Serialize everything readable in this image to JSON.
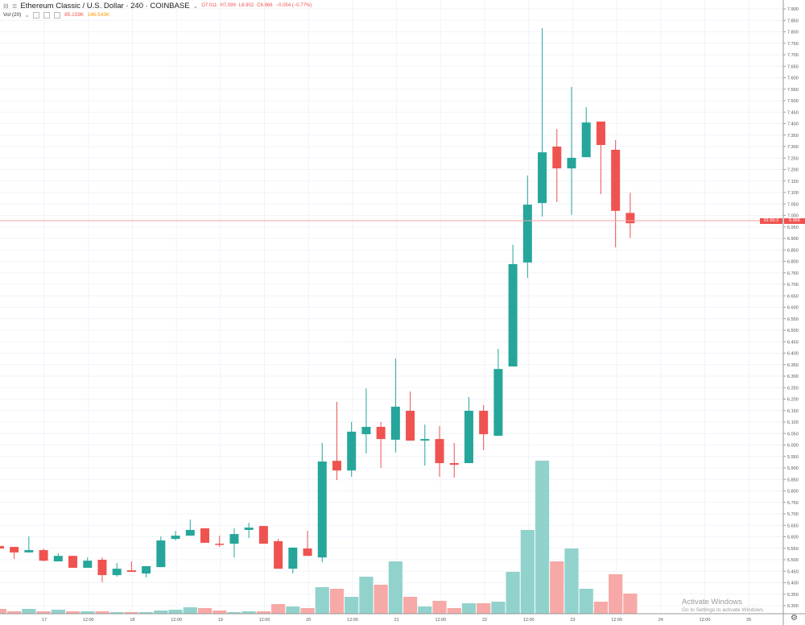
{
  "header": {
    "symbol": "Ethereum Classic / U.S. Dollar · 240 · COINBASE",
    "open": "O7.011",
    "high": "H7.099",
    "low": "L6.902",
    "close": "C6.966",
    "change": "−0.054 (−0.77%)",
    "volume_label": "Vol (20)",
    "volume_value": "85.159K",
    "volume_ma": "146.543K"
  },
  "price_label": {
    "price": "6.966",
    "countdown": "01:56:3"
  },
  "watermark": {
    "title": "Activate Windows",
    "subtitle": "Go to Settings to activate Windows."
  },
  "colors": {
    "up": "#26a69a",
    "down": "#ef5350",
    "up_volume": "#92d2cc",
    "down_volume": "#f7a9a7",
    "grid": "#f0f3fa",
    "price_line": "#f4a3a3"
  },
  "chart_data": {
    "type": "candlestick",
    "title": "",
    "ylim": [
      5.3,
      7.9
    ],
    "grid": true,
    "y_ticks": [
      "7.900",
      "7.850",
      "7.800",
      "7.750",
      "7.700",
      "7.650",
      "7.600",
      "7.550",
      "7.500",
      "7.450",
      "7.400",
      "7.350",
      "7.300",
      "7.250",
      "7.200",
      "7.150",
      "7.100",
      "7.050",
      "7.000",
      "6.950",
      "6.900",
      "6.850",
      "6.800",
      "6.750",
      "6.700",
      "6.650",
      "6.600",
      "6.550",
      "6.500",
      "6.450",
      "6.400",
      "6.350",
      "6.300",
      "6.250",
      "6.200",
      "6.150",
      "6.100",
      "6.050",
      "6.000",
      "5.950",
      "5.900",
      "5.850",
      "5.800",
      "5.750",
      "5.700",
      "5.650",
      "5.600",
      "5.550",
      "5.500",
      "5.450",
      "5.400",
      "5.350",
      "5.300"
    ],
    "x_ticks": [
      "17",
      "12:00",
      "18",
      "12:00",
      "19",
      "12:00",
      "20",
      "12:00",
      "21",
      "12:00",
      "22",
      "12:00",
      "23",
      "12:00",
      "24",
      "12:00",
      "25"
    ],
    "candles": [
      {
        "t": "16 12:00",
        "o": 5.56,
        "h": 5.56,
        "l": 5.549,
        "c": 5.549,
        "v": 20.4
      },
      {
        "t": "16 16:00",
        "o": 5.556,
        "h": 5.556,
        "l": 5.503,
        "c": 5.532,
        "v": 10.2
      },
      {
        "t": "16 20:00",
        "o": 5.532,
        "h": 5.602,
        "l": 5.532,
        "c": 5.542,
        "v": 20.4
      },
      {
        "t": "17 00:00",
        "o": 5.542,
        "h": 5.549,
        "l": 5.493,
        "c": 5.496,
        "v": 10.2
      },
      {
        "t": "17 04:00",
        "o": 5.493,
        "h": 5.528,
        "l": 5.493,
        "c": 5.517,
        "v": 17.0
      },
      {
        "t": "17 08:00",
        "o": 5.517,
        "h": 5.517,
        "l": 5.465,
        "c": 5.465,
        "v": 10.2
      },
      {
        "t": "17 12:00",
        "o": 5.465,
        "h": 5.51,
        "l": 5.465,
        "c": 5.496,
        "v": 10.2
      },
      {
        "t": "17 16:00",
        "o": 5.5,
        "h": 5.51,
        "l": 5.402,
        "c": 5.433,
        "v": 10.2
      },
      {
        "t": "17 20:00",
        "o": 5.433,
        "h": 5.486,
        "l": 5.426,
        "c": 5.461,
        "v": 6.8
      },
      {
        "t": "18 00:00",
        "o": 5.454,
        "h": 5.493,
        "l": 5.447,
        "c": 5.447,
        "v": 6.8
      },
      {
        "t": "18 04:00",
        "o": 5.44,
        "h": 5.472,
        "l": 5.423,
        "c": 5.472,
        "v": 6.8
      },
      {
        "t": "18 08:00",
        "o": 5.468,
        "h": 5.602,
        "l": 5.468,
        "c": 5.584,
        "v": 13.6
      },
      {
        "t": "18 12:00",
        "o": 5.591,
        "h": 5.626,
        "l": 5.584,
        "c": 5.605,
        "v": 17.0
      },
      {
        "t": "18 16:00",
        "o": 5.605,
        "h": 5.675,
        "l": 5.605,
        "c": 5.63,
        "v": 27.2
      },
      {
        "t": "18 20:00",
        "o": 5.637,
        "h": 5.637,
        "l": 5.574,
        "c": 5.574,
        "v": 23.8
      },
      {
        "t": "19 00:00",
        "o": 5.57,
        "h": 5.605,
        "l": 5.556,
        "c": 5.567,
        "v": 13.6
      },
      {
        "t": "19 04:00",
        "o": 5.57,
        "h": 5.637,
        "l": 5.51,
        "c": 5.612,
        "v": 6.8
      },
      {
        "t": "19 08:00",
        "o": 5.63,
        "h": 5.661,
        "l": 5.595,
        "c": 5.64,
        "v": 10.2
      },
      {
        "t": "19 12:00",
        "o": 5.647,
        "h": 5.647,
        "l": 5.57,
        "c": 5.57,
        "v": 10.2
      },
      {
        "t": "19 16:00",
        "o": 5.581,
        "h": 5.591,
        "l": 5.461,
        "c": 5.461,
        "v": 40.8
      },
      {
        "t": "19 20:00",
        "o": 5.461,
        "h": 5.553,
        "l": 5.44,
        "c": 5.553,
        "v": 30.6
      },
      {
        "t": "20 00:00",
        "o": 5.549,
        "h": 5.626,
        "l": 5.517,
        "c": 5.517,
        "v": 23.8
      },
      {
        "t": "20 04:00",
        "o": 5.51,
        "h": 6.009,
        "l": 5.489,
        "c": 5.928,
        "v": 112.2
      },
      {
        "t": "20 08:00",
        "o": 5.931,
        "h": 6.188,
        "l": 5.847,
        "c": 5.889,
        "v": 105.4
      },
      {
        "t": "20 12:00",
        "o": 5.889,
        "h": 6.1,
        "l": 5.861,
        "c": 6.058,
        "v": 71.4
      },
      {
        "t": "20 16:00",
        "o": 6.047,
        "h": 6.247,
        "l": 5.963,
        "c": 6.079,
        "v": 156.4
      },
      {
        "t": "20 20:00",
        "o": 6.079,
        "h": 6.1,
        "l": 5.9,
        "c": 6.026,
        "v": 122.4
      },
      {
        "t": "21 00:00",
        "o": 6.023,
        "h": 6.377,
        "l": 5.967,
        "c": 6.167,
        "v": 221.0
      },
      {
        "t": "21 04:00",
        "o": 6.149,
        "h": 6.233,
        "l": 6.019,
        "c": 6.019,
        "v": 71.4
      },
      {
        "t": "21 08:00",
        "o": 6.019,
        "h": 6.089,
        "l": 5.91,
        "c": 6.026,
        "v": 30.6
      },
      {
        "t": "21 12:00",
        "o": 6.026,
        "h": 6.082,
        "l": 5.861,
        "c": 5.921,
        "v": 54.4
      },
      {
        "t": "21 16:00",
        "o": 5.921,
        "h": 6.009,
        "l": 5.858,
        "c": 5.914,
        "v": 23.8
      },
      {
        "t": "21 20:00",
        "o": 5.921,
        "h": 6.209,
        "l": 5.921,
        "c": 6.149,
        "v": 44.2
      },
      {
        "t": "22 00:00",
        "o": 6.149,
        "h": 6.174,
        "l": 5.977,
        "c": 6.047,
        "v": 44.2
      },
      {
        "t": "22 04:00",
        "o": 6.04,
        "h": 6.419,
        "l": 6.04,
        "c": 6.331,
        "v": 51.0
      },
      {
        "t": "22 08:00",
        "o": 6.342,
        "h": 6.872,
        "l": 6.342,
        "c": 6.788,
        "v": 176.8
      },
      {
        "t": "22 12:00",
        "o": 6.795,
        "h": 7.174,
        "l": 6.728,
        "c": 7.047,
        "v": 353.6
      },
      {
        "t": "22 16:00",
        "o": 7.054,
        "h": 7.816,
        "l": 6.995,
        "c": 7.275,
        "v": 646.0
      },
      {
        "t": "22 20:00",
        "o": 7.3,
        "h": 7.377,
        "l": 7.058,
        "c": 7.205,
        "v": 221.0
      },
      {
        "t": "23 00:00",
        "o": 7.205,
        "h": 7.56,
        "l": 7.002,
        "c": 7.251,
        "v": 275.4
      },
      {
        "t": "23 04:00",
        "o": 7.254,
        "h": 7.472,
        "l": 7.254,
        "c": 7.405,
        "v": 105.4
      },
      {
        "t": "23 08:00",
        "o": 7.409,
        "h": 7.409,
        "l": 7.093,
        "c": 7.307,
        "v": 51.0
      },
      {
        "t": "23 12:00",
        "o": 7.286,
        "h": 7.328,
        "l": 6.861,
        "c": 7.02,
        "v": 166.6
      },
      {
        "t": "23 16:00",
        "o": 7.011,
        "h": 7.099,
        "l": 6.902,
        "c": 6.966,
        "v": 85.159
      }
    ]
  }
}
